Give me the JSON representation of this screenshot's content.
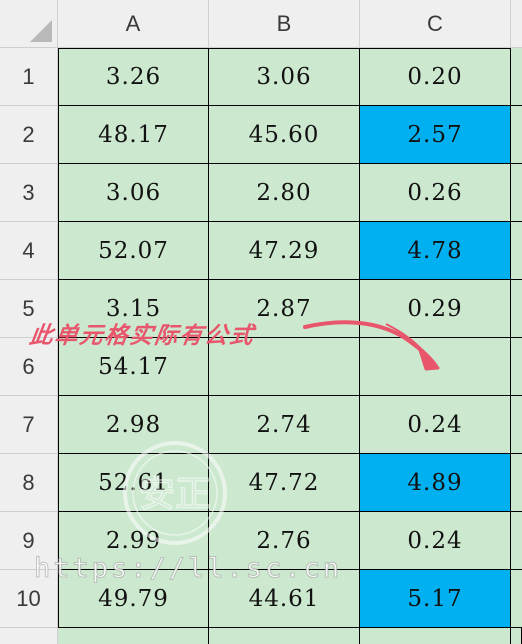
{
  "columns": [
    "A",
    "B",
    "C"
  ],
  "rows": [
    {
      "num": "1",
      "a": "3.26",
      "b": "3.06",
      "c": "0.20",
      "c_highlight": false
    },
    {
      "num": "2",
      "a": "48.17",
      "b": "45.60",
      "c": "2.57",
      "c_highlight": true
    },
    {
      "num": "3",
      "a": "3.06",
      "b": "2.80",
      "c": "0.26",
      "c_highlight": false
    },
    {
      "num": "4",
      "a": "52.07",
      "b": "47.29",
      "c": "4.78",
      "c_highlight": true
    },
    {
      "num": "5",
      "a": "3.15",
      "b": "2.87",
      "c": "0.29",
      "c_highlight": false
    },
    {
      "num": "6",
      "a": "54.17",
      "b": "",
      "c": "",
      "c_highlight": false
    },
    {
      "num": "7",
      "a": "2.98",
      "b": "2.74",
      "c": "0.24",
      "c_highlight": false
    },
    {
      "num": "8",
      "a": "52.61",
      "b": "47.72",
      "c": "4.89",
      "c_highlight": true
    },
    {
      "num": "9",
      "a": "2.99",
      "b": "2.76",
      "c": "0.24",
      "c_highlight": false
    },
    {
      "num": "10",
      "a": "49.79",
      "b": "44.61",
      "c": "5.17",
      "c_highlight": true
    }
  ],
  "annotation": "此单元格实际有公式",
  "watermark": {
    "url": "https://ll.sc.cn",
    "seal_text": "安正"
  },
  "colors": {
    "cell_fill": "#cce8cf",
    "highlight_fill": "#00b0f0",
    "header_fill": "#efefef",
    "annotation": "#e8566c"
  }
}
